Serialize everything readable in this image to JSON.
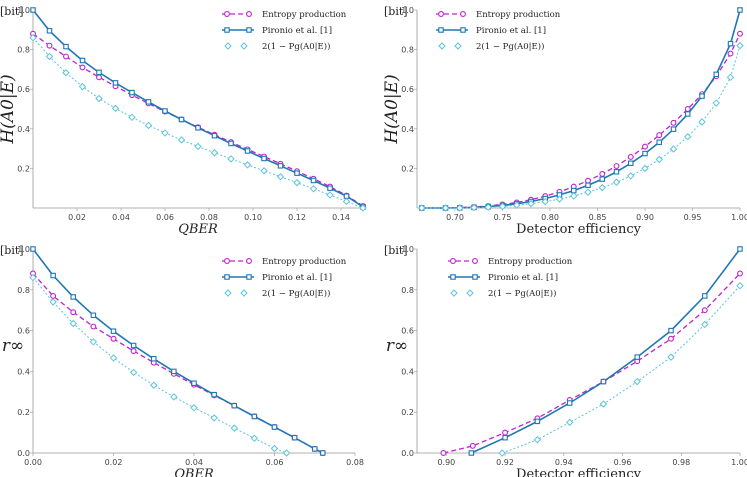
{
  "chart_data": [
    {
      "type": "line",
      "xlabel": "QBER",
      "ylabel": "H(A0|E)",
      "unit_label": "[bit]",
      "xlim": [
        0.0,
        0.15
      ],
      "ylim": [
        0.0,
        1.0
      ],
      "xticks": [
        0.02,
        0.04,
        0.06,
        0.08,
        0.1,
        0.12,
        0.14
      ],
      "xtick_labels": [
        "0.02",
        "0.04",
        "0.06",
        "0.08",
        "0.10",
        "0.12",
        "0.14"
      ],
      "yticks": [
        0.2,
        0.4,
        0.6,
        0.8,
        1.0
      ],
      "ytick_labels": [
        "0.2",
        "0.4",
        "0.6",
        "0.8",
        "1.0"
      ],
      "legend": [
        "Entropy production",
        "Pironio et al. [1]",
        "2(1 − Pg(A0|E))"
      ],
      "series": [
        {
          "name": "Entropy production",
          "x": [
            0,
            0.0075,
            0.015,
            0.0225,
            0.03,
            0.0375,
            0.045,
            0.0525,
            0.06,
            0.0675,
            0.075,
            0.0825,
            0.09,
            0.0975,
            0.105,
            0.1125,
            0.12,
            0.1275,
            0.135,
            0.1425,
            0.15
          ],
          "y": [
            0.88,
            0.82,
            0.765,
            0.71,
            0.66,
            0.615,
            0.57,
            0.528,
            0.487,
            0.447,
            0.408,
            0.37,
            0.333,
            0.296,
            0.26,
            0.223,
            0.186,
            0.148,
            0.108,
            0.063,
            0.01
          ]
        },
        {
          "name": "Pironio et al. [1]",
          "x": [
            0,
            0.0075,
            0.015,
            0.0225,
            0.03,
            0.0375,
            0.045,
            0.0525,
            0.06,
            0.0675,
            0.075,
            0.0825,
            0.09,
            0.0975,
            0.105,
            0.1125,
            0.12,
            0.1275,
            0.135,
            0.1425,
            0.15
          ],
          "y": [
            1.0,
            0.895,
            0.815,
            0.745,
            0.685,
            0.632,
            0.583,
            0.536,
            0.49,
            0.447,
            0.405,
            0.365,
            0.326,
            0.288,
            0.25,
            0.213,
            0.176,
            0.139,
            0.1,
            0.06,
            0.005
          ]
        },
        {
          "name": "2(1 − Pg(A0|E))",
          "x": [
            0,
            0.0075,
            0.015,
            0.0225,
            0.03,
            0.0375,
            0.045,
            0.0525,
            0.06,
            0.0675,
            0.075,
            0.0825,
            0.09,
            0.0975,
            0.105,
            0.1125,
            0.12,
            0.1275,
            0.135,
            0.1425,
            0.15
          ],
          "y": [
            0.86,
            0.765,
            0.683,
            0.613,
            0.553,
            0.503,
            0.458,
            0.417,
            0.379,
            0.344,
            0.311,
            0.279,
            0.248,
            0.218,
            0.188,
            0.158,
            0.128,
            0.097,
            0.066,
            0.033,
            0.0
          ]
        }
      ]
    },
    {
      "type": "line",
      "xlabel": "Detector efficiency",
      "ylabel": "H(A0|E)",
      "unit_label": "[bit]",
      "xlim": [
        0.66,
        1.0
      ],
      "ylim": [
        0.0,
        1.0
      ],
      "xticks": [
        0.7,
        0.75,
        0.8,
        0.85,
        0.9,
        0.95,
        1.0
      ],
      "xtick_labels": [
        "0.70",
        "0.75",
        "0.80",
        "0.85",
        "0.90",
        "0.95",
        "1.00"
      ],
      "yticks": [
        0.2,
        0.4,
        0.6,
        0.8,
        1.0
      ],
      "ytick_labels": [
        "0.2",
        "0.4",
        "0.6",
        "0.8",
        "1.0"
      ],
      "legend": [
        "Entropy production",
        "Pironio et al. [1]",
        "2(1 − Pg(A0|E))"
      ],
      "series": [
        {
          "name": "Entropy production",
          "x": [
            0.665,
            0.69,
            0.705,
            0.72,
            0.735,
            0.75,
            0.765,
            0.78,
            0.795,
            0.81,
            0.825,
            0.84,
            0.855,
            0.87,
            0.885,
            0.9,
            0.915,
            0.93,
            0.945,
            0.96,
            0.975,
            0.99,
            1.0
          ],
          "y": [
            0.0,
            0.0,
            0.002,
            0.005,
            0.01,
            0.018,
            0.028,
            0.042,
            0.06,
            0.082,
            0.108,
            0.138,
            0.172,
            0.212,
            0.258,
            0.31,
            0.368,
            0.43,
            0.5,
            0.575,
            0.665,
            0.78,
            0.88
          ]
        },
        {
          "name": "Pironio et al. [1]",
          "x": [
            0.665,
            0.69,
            0.705,
            0.72,
            0.735,
            0.75,
            0.765,
            0.78,
            0.795,
            0.81,
            0.825,
            0.84,
            0.855,
            0.87,
            0.885,
            0.9,
            0.915,
            0.93,
            0.945,
            0.96,
            0.975,
            0.99,
            1.0
          ],
          "y": [
            0.0,
            0.0,
            0.001,
            0.003,
            0.007,
            0.013,
            0.021,
            0.033,
            0.048,
            0.066,
            0.088,
            0.115,
            0.146,
            0.183,
            0.226,
            0.275,
            0.332,
            0.398,
            0.475,
            0.565,
            0.675,
            0.83,
            1.0
          ]
        },
        {
          "name": "2(1 − Pg(A0|E))",
          "x": [
            0.665,
            0.69,
            0.705,
            0.72,
            0.735,
            0.75,
            0.765,
            0.78,
            0.795,
            0.81,
            0.825,
            0.84,
            0.855,
            0.87,
            0.885,
            0.9,
            0.915,
            0.93,
            0.945,
            0.96,
            0.975,
            0.99,
            1.0
          ],
          "y": [
            0.0,
            0.0,
            0.0,
            0.002,
            0.004,
            0.008,
            0.014,
            0.022,
            0.032,
            0.045,
            0.061,
            0.08,
            0.103,
            0.13,
            0.162,
            0.2,
            0.245,
            0.298,
            0.36,
            0.435,
            0.53,
            0.66,
            0.82
          ]
        }
      ]
    },
    {
      "type": "line",
      "xlabel": "QBER",
      "ylabel": "r∞",
      "unit_label": "[bit]",
      "xlim": [
        0.0,
        0.08
      ],
      "ylim": [
        0.0,
        1.0
      ],
      "xticks": [
        0.0,
        0.02,
        0.04,
        0.06,
        0.08
      ],
      "xtick_labels": [
        "0.00",
        "0.02",
        "0.04",
        "0.06",
        "0.08"
      ],
      "yticks": [
        0.0,
        0.2,
        0.4,
        0.6,
        0.8,
        1.0
      ],
      "ytick_labels": [
        "0.0",
        "0.2",
        "0.4",
        "0.6",
        "0.8",
        "1.0"
      ],
      "legend": [
        "Entropy production",
        "Pironio et al. [1]",
        "2(1 − Pg(A0|E))"
      ],
      "series": [
        {
          "name": "Entropy production",
          "x": [
            0,
            0.005,
            0.01,
            0.015,
            0.02,
            0.025,
            0.03,
            0.035,
            0.04,
            0.045,
            0.05,
            0.055,
            0.06,
            0.065,
            0.07,
            0.072
          ],
          "y": [
            0.88,
            0.77,
            0.69,
            0.62,
            0.56,
            0.5,
            0.443,
            0.388,
            0.335,
            0.283,
            0.232,
            0.18,
            0.128,
            0.075,
            0.02,
            0.0
          ]
        },
        {
          "name": "Pironio et al. [1]",
          "x": [
            0,
            0.005,
            0.01,
            0.015,
            0.02,
            0.025,
            0.03,
            0.035,
            0.04,
            0.045,
            0.05,
            0.055,
            0.06,
            0.065,
            0.07,
            0.072
          ],
          "y": [
            1.0,
            0.87,
            0.765,
            0.675,
            0.597,
            0.527,
            0.462,
            0.4,
            0.342,
            0.286,
            0.232,
            0.179,
            0.127,
            0.075,
            0.02,
            0.0
          ]
        },
        {
          "name": "2(1 − Pg(A0|E))",
          "x": [
            0,
            0.005,
            0.01,
            0.015,
            0.02,
            0.025,
            0.03,
            0.035,
            0.04,
            0.045,
            0.05,
            0.055,
            0.06,
            0.063
          ],
          "y": [
            0.86,
            0.74,
            0.635,
            0.545,
            0.466,
            0.395,
            0.332,
            0.275,
            0.222,
            0.172,
            0.122,
            0.072,
            0.022,
            0.0
          ]
        }
      ]
    },
    {
      "type": "line",
      "xlabel": "Detector efficiency",
      "ylabel": "r∞",
      "unit_label": "[bit]",
      "xlim": [
        0.89,
        1.0
      ],
      "ylim": [
        0.0,
        1.0
      ],
      "xticks": [
        0.9,
        0.92,
        0.94,
        0.96,
        0.98,
        1.0
      ],
      "xtick_labels": [
        "0.90",
        "0.92",
        "0.94",
        "0.96",
        "0.98",
        "1.00"
      ],
      "yticks": [
        0.0,
        0.2,
        0.4,
        0.6,
        0.8,
        1.0
      ],
      "ytick_labels": [
        "0.0",
        "0.2",
        "0.4",
        "0.6",
        "0.8",
        "1.0"
      ],
      "legend": [
        "Entropy production",
        "Pironio et al. [1]",
        "2(1 − Pg(A0|E))"
      ],
      "series": [
        {
          "name": "Entropy production",
          "x": [
            0.899,
            0.909,
            0.92,
            0.931,
            0.942,
            0.9535,
            0.965,
            0.9765,
            0.988,
            1.0
          ],
          "y": [
            0.0,
            0.035,
            0.1,
            0.17,
            0.26,
            0.35,
            0.45,
            0.56,
            0.7,
            0.88
          ]
        },
        {
          "name": "Pironio et al. [1]",
          "x": [
            0.9085,
            0.92,
            0.931,
            0.942,
            0.9535,
            0.965,
            0.9765,
            0.988,
            1.0
          ],
          "y": [
            0.0,
            0.075,
            0.155,
            0.245,
            0.35,
            0.47,
            0.6,
            0.77,
            1.0
          ]
        },
        {
          "name": "2(1 − Pg(A0|E))",
          "x": [
            0.919,
            0.931,
            0.942,
            0.9535,
            0.965,
            0.9765,
            0.988,
            1.0
          ],
          "y": [
            0.0,
            0.065,
            0.15,
            0.24,
            0.35,
            0.47,
            0.63,
            0.82
          ]
        }
      ]
    }
  ]
}
